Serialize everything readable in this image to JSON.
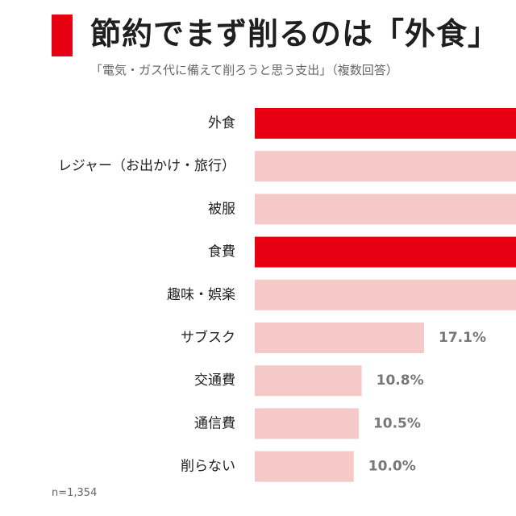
{
  "header": {
    "title": "節約でまず削るのは「外食」",
    "subtitle": "「電気・ガス代に備えて削ろうと思う支出」（複数回答）"
  },
  "note": "n=1,354",
  "colors": {
    "highlight": "#e60012",
    "normal": "#f6c9c9",
    "label_text": "#222222",
    "value_text": "#777777"
  },
  "chart_data": {
    "type": "bar",
    "orientation": "horizontal",
    "categories": [
      "外食",
      "レジャー（お出かけ・旅行）",
      "被服",
      "食費",
      "趣味・娯楽",
      "サブスク",
      "交通費",
      "通信費",
      "削らない"
    ],
    "values": [
      null,
      null,
      null,
      null,
      null,
      17.1,
      10.8,
      10.5,
      10.0
    ],
    "labels": [
      "",
      "",
      "",
      "",
      "",
      "17.1%",
      "10.8%",
      "10.5%",
      "10.0%"
    ],
    "highlighted": [
      true,
      false,
      false,
      true,
      false,
      false,
      false,
      false,
      false
    ],
    "unit": "%",
    "xlim": [
      0,
      26.5
    ],
    "grid": false,
    "legend": "none"
  }
}
